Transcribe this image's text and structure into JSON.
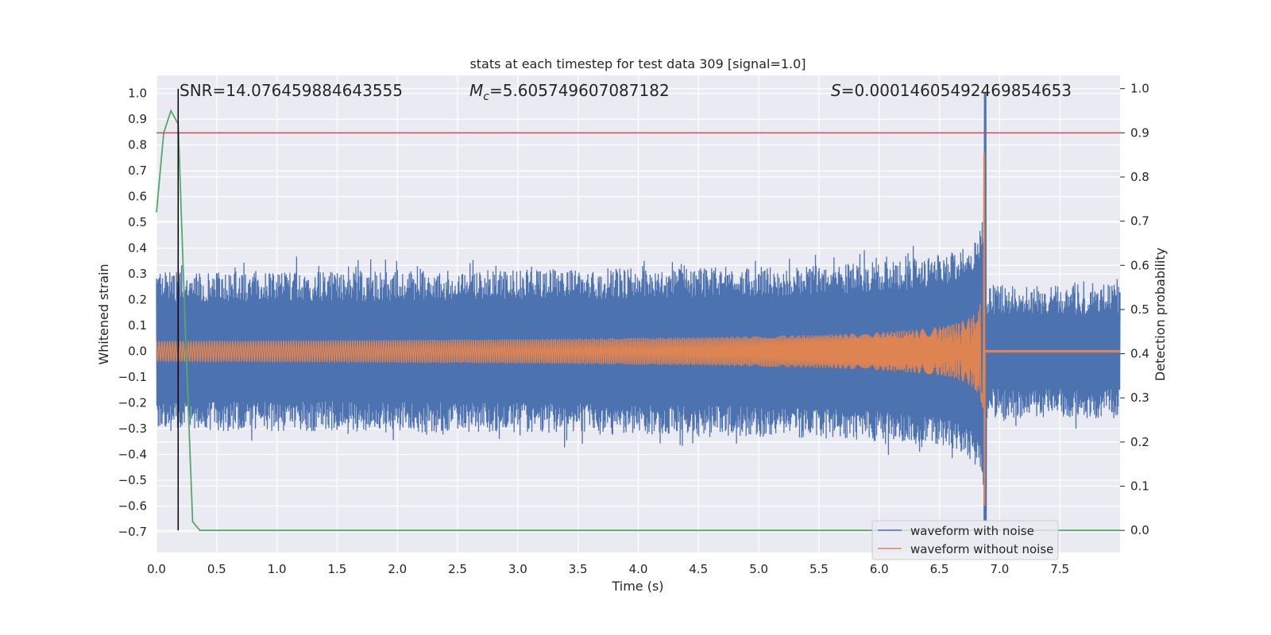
{
  "chart_data": {
    "type": "line",
    "title": "stats at each timestep for test data 309 [signal=1.0]",
    "xlabel": "Time (s)",
    "ylabel_left": "Whitened strain",
    "ylabel_right": "Detection probability",
    "xlim": [
      0.0,
      8.0
    ],
    "ylim_left": [
      -0.78,
      1.07
    ],
    "ylim_right": [
      -0.05,
      1.03
    ],
    "x_ticks": [
      "0.0",
      "0.5",
      "1.0",
      "1.5",
      "2.0",
      "2.5",
      "3.0",
      "3.5",
      "4.0",
      "4.5",
      "5.0",
      "5.5",
      "6.0",
      "6.5",
      "7.0",
      "7.5"
    ],
    "y_ticks_left": [
      "1.0",
      "0.9",
      "0.8",
      "0.7",
      "0.6",
      "0.5",
      "0.4",
      "0.3",
      "0.2",
      "0.1",
      "0.0",
      "−0.1",
      "−0.2",
      "−0.3",
      "−0.4",
      "−0.5",
      "−0.6",
      "−0.7"
    ],
    "y_ticks_right": [
      "1.0",
      "0.9",
      "0.8",
      "0.7",
      "0.6",
      "0.5",
      "0.4",
      "0.3",
      "0.2",
      "0.1",
      "0.0"
    ],
    "grid": true,
    "annotations": {
      "snr": "SNR=14.076459884643555",
      "mc_symbol": "M",
      "mc_sub": "c",
      "mc_value": "=5.605749607087182",
      "s_symbol": "S",
      "s_value": "=0.00014605492469854653"
    },
    "merger_time": 6.88,
    "detection_time": 0.18,
    "threshold": 0.9,
    "series": [
      {
        "name": "waveform with noise",
        "color": "#4c72b0",
        "noise_amplitude_left": 0.26,
        "peak_value": 1.0,
        "min_value": -0.66
      },
      {
        "name": "waveform without noise",
        "color": "#dd8452",
        "start_amplitude": 0.04,
        "peak_value": 0.77,
        "min_value": -0.6
      },
      {
        "name": "detection probability",
        "color": "#55a868",
        "x": [
          0.0,
          0.06,
          0.12,
          0.18,
          0.24,
          0.3,
          0.36,
          0.42,
          8.0
        ],
        "values": [
          0.72,
          0.9,
          0.95,
          0.92,
          0.45,
          0.02,
          0.0,
          0.0,
          0.0
        ]
      }
    ],
    "threshold_color": "#c44e52",
    "detection_line_color": "#000000"
  }
}
